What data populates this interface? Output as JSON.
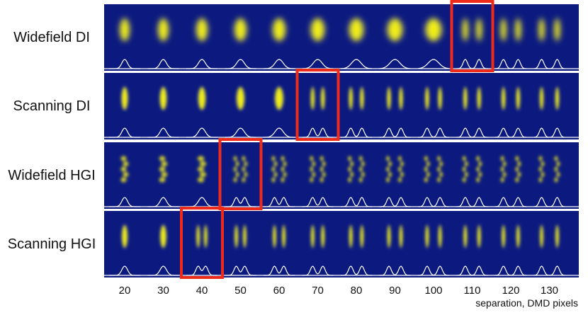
{
  "chart_data": {
    "type": "image-grid",
    "rows": [
      {
        "label": "Widefield DI",
        "highlight_separation": 110
      },
      {
        "label": "Scanning DI",
        "highlight_separation": 70
      },
      {
        "label": "Widefield HGI",
        "highlight_separation": 50
      },
      {
        "label": "Scanning HGI",
        "highlight_separation": 40
      }
    ],
    "separations": [
      20,
      30,
      40,
      50,
      60,
      70,
      80,
      90,
      100,
      110,
      120,
      130
    ],
    "xlabel": "separation, DMD pixels",
    "colors": {
      "background": "#0c1a80",
      "spot": "#f3f018",
      "profile": "#ffffff",
      "highlight": "#ee2b1a"
    }
  }
}
